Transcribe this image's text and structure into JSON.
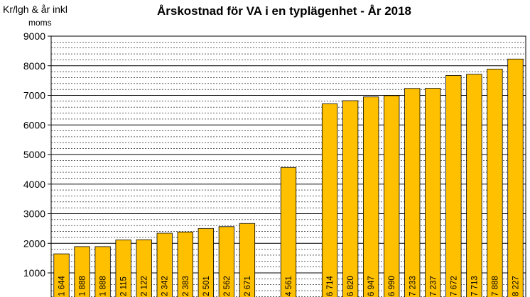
{
  "chart_data": {
    "type": "bar",
    "title": "Årskostnad för VA i en typlägenhet - År 2018",
    "ylabel_line1": "Kr/lgh & år inkl",
    "ylabel_line2": "moms",
    "ylim": [
      0,
      9000
    ],
    "yticks": [
      1000,
      2000,
      3000,
      4000,
      5000,
      6000,
      7000,
      8000,
      9000
    ],
    "grid": true,
    "bar_color": "#FFC000",
    "values": [
      1644,
      1888,
      1888,
      2115,
      2122,
      2342,
      2383,
      2501,
      2562,
      2671,
      null,
      4561,
      null,
      6714,
      6820,
      6947,
      6990,
      7233,
      7237,
      7672,
      7713,
      7888,
      8227
    ],
    "labels": [
      "1 644",
      "1 888",
      "1 888",
      "2 115",
      "2 122",
      "2 342",
      "2 383",
      "2 501",
      "2 562",
      "2 671",
      "",
      "4 561",
      "",
      "6 714",
      "6 820",
      "6 947",
      "6 990",
      "7 233",
      "7 237",
      "7 672",
      "7 713",
      "7 888",
      "8 227"
    ]
  }
}
